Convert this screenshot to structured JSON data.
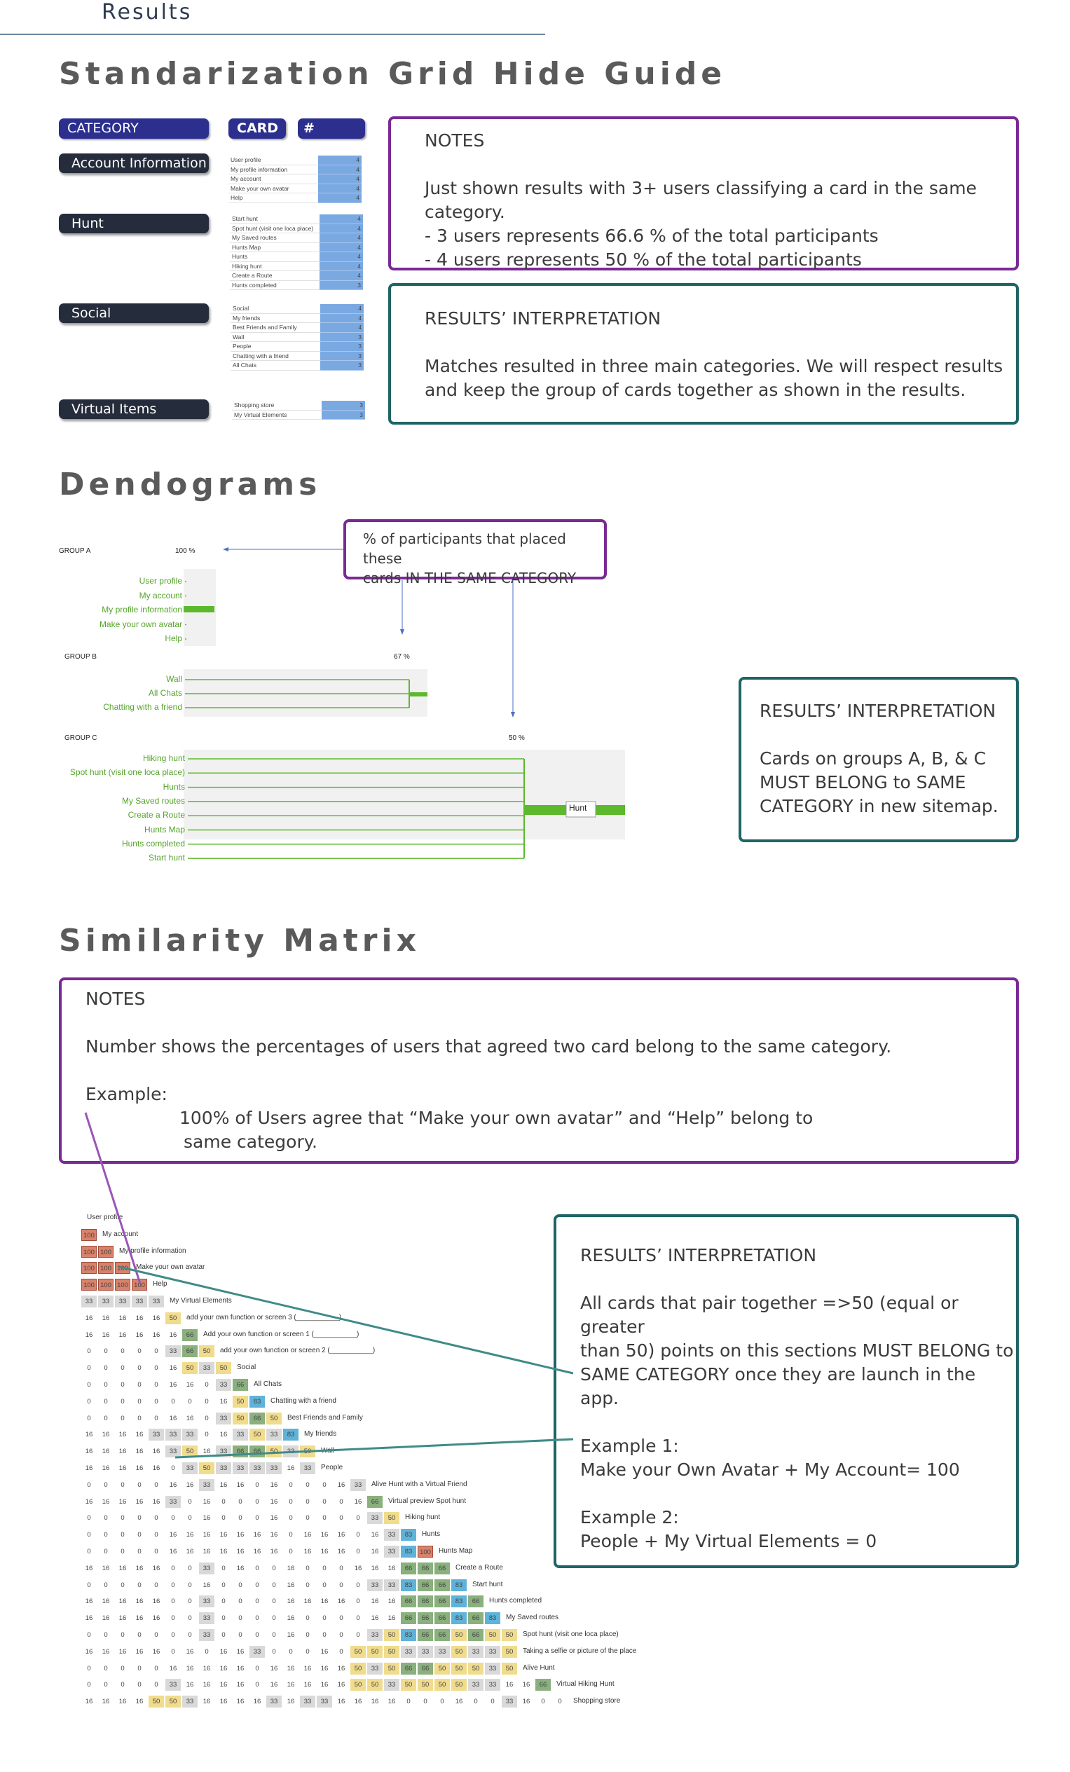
{
  "tab_title": "Results",
  "section1": {
    "title": "Standarization Grid Hide Guide",
    "headers": {
      "category": "CATEGORY",
      "card": "CARD",
      "users": "# USERS"
    },
    "categories": [
      "Account Information",
      "Hunt",
      "Social",
      "Virtual Items"
    ],
    "groups": [
      {
        "cards": [
          [
            "User profile",
            "4"
          ],
          [
            "My profile information",
            "4"
          ],
          [
            "My account",
            "4"
          ],
          [
            "Make your own avatar",
            "4"
          ],
          [
            "Help",
            "4"
          ]
        ]
      },
      {
        "cards": [
          [
            "Start hunt",
            "4"
          ],
          [
            "Spot hunt (visit one loca place)",
            "4"
          ],
          [
            "My Saved routes",
            "4"
          ],
          [
            "Hunts Map",
            "4"
          ],
          [
            "Hunts",
            "4"
          ],
          [
            "Hiking hunt",
            "4"
          ],
          [
            "Create a Route",
            "4"
          ],
          [
            "Hunts completed",
            "3"
          ]
        ]
      },
      {
        "cards": [
          [
            "Social",
            "4"
          ],
          [
            "My friends",
            "4"
          ],
          [
            "Best Friends and Family",
            "4"
          ],
          [
            "Wall",
            "3"
          ],
          [
            "People",
            "3"
          ],
          [
            "Chatting with a friend",
            "3"
          ],
          [
            "All Chats",
            "3"
          ]
        ]
      },
      {
        "cards": [
          [
            "Shopping store",
            "3"
          ],
          [
            "My Virtual Elements",
            "3"
          ]
        ]
      }
    ],
    "notes": {
      "title": "NOTES",
      "text": "Just shown results with 3+ users classifying a card in the same category.\n- 3 users represents 66.6 % of the total participants\n- 4 users represents 50 % of the total participants"
    },
    "interpretation": {
      "title": "RESULTS’ INTERPRETATION",
      "text": "Matches resulted in three main categories. We will respect results\nand keep the group of cards together as shown in the results."
    }
  },
  "section2": {
    "title": "Dendograms",
    "callout": "% of participants that placed these\ncards IN THE SAME CATEGORY",
    "groupA": {
      "label": "GROUP A",
      "pct": "100 %",
      "items": [
        "User profile",
        "My account",
        "My profile information",
        "Make your own avatar",
        "Help"
      ]
    },
    "groupB": {
      "label": "GROUP B",
      "pct": "67 %",
      "items": [
        "Wall",
        "All Chats",
        "Chatting with a friend"
      ]
    },
    "groupC": {
      "label": "GROUP C",
      "pct": "50 %",
      "items": [
        "Hiking hunt",
        "Spot hunt (visit one loca place)",
        "Hunts",
        "My Saved routes",
        "Create a Route",
        "Hunts Map",
        "Hunts completed",
        "Start hunt"
      ],
      "node": "Hunt"
    },
    "interpretation": {
      "title": "RESULTS’ INTERPRETATION",
      "text": "Cards on groups A, B, & C\nMUST BELONG to SAME\nCATEGORY in new sitemap."
    }
  },
  "section3": {
    "title": "Similarity Matrix",
    "notes": {
      "title": "NOTES",
      "line1": "Number shows the percentages of users that agreed two card belong to the same category.",
      "line2": "Example:",
      "line3": "100% of Users agree that “Make your own avatar” and “Help” belong to",
      "line4": "same category."
    },
    "interpretation": {
      "title": "RESULTS’ INTERPRETATION",
      "text": "All cards that pair together =>50 (equal or greater\nthan 50) points on this sections MUST BELONG to\nSAME CATEGORY once they are launch in the app.\n\nExample 1:\nMake your Own Avatar + My Account= 100\n\nExample 2:\nPeople + My Virtual Elements = 0"
    },
    "matrix": {
      "rows": [
        {
          "label": "User profile",
          "values": []
        },
        {
          "label": "My account",
          "values": [
            "100"
          ]
        },
        {
          "label": "My profile information",
          "values": [
            "100",
            "100"
          ]
        },
        {
          "label": "Make your own avatar",
          "values": [
            "100",
            "100",
            "100"
          ]
        },
        {
          "label": "Help",
          "values": [
            "100",
            "100",
            "100",
            "100"
          ]
        },
        {
          "label": "My Virtual Elements",
          "values": [
            "33",
            "33",
            "33",
            "33",
            "33"
          ]
        },
        {
          "label": "add your own function or screen 3 (___________)",
          "values": [
            "16",
            "16",
            "16",
            "16",
            "16",
            "50"
          ]
        },
        {
          "label": "Add your own function or screen 1 (___________)",
          "values": [
            "16",
            "16",
            "16",
            "16",
            "16",
            "16",
            "66"
          ]
        },
        {
          "label": "add your own function or screen 2 (___________)",
          "values": [
            "0",
            "0",
            "0",
            "0",
            "0",
            "33",
            "66",
            "50"
          ]
        },
        {
          "label": "Social",
          "values": [
            "0",
            "0",
            "0",
            "0",
            "0",
            "16",
            "50",
            "33",
            "50"
          ]
        },
        {
          "label": "All Chats",
          "values": [
            "0",
            "0",
            "0",
            "0",
            "0",
            "16",
            "16",
            "0",
            "33",
            "66"
          ]
        },
        {
          "label": "Chatting with a friend",
          "values": [
            "0",
            "0",
            "0",
            "0",
            "0",
            "0",
            "0",
            "0",
            "16",
            "50",
            "83"
          ]
        },
        {
          "label": "Best Friends and Family",
          "values": [
            "0",
            "0",
            "0",
            "0",
            "0",
            "16",
            "16",
            "0",
            "33",
            "50",
            "66",
            "50"
          ]
        },
        {
          "label": "My friends",
          "values": [
            "16",
            "16",
            "16",
            "16",
            "33",
            "33",
            "33",
            "0",
            "16",
            "33",
            "50",
            "33",
            "83"
          ]
        },
        {
          "label": "Wall",
          "values": [
            "16",
            "16",
            "16",
            "16",
            "16",
            "33",
            "50",
            "16",
            "33",
            "66",
            "66",
            "50",
            "33",
            "50"
          ]
        },
        {
          "label": "People",
          "values": [
            "16",
            "16",
            "16",
            "16",
            "16",
            "0",
            "33",
            "50",
            "33",
            "33",
            "33",
            "33",
            "16",
            "33"
          ]
        },
        {
          "label": "Alive Hunt with a Virtual Friend",
          "values": [
            "0",
            "0",
            "0",
            "0",
            "0",
            "16",
            "16",
            "33",
            "16",
            "16",
            "0",
            "16",
            "0",
            "0",
            "0",
            "16",
            "33"
          ]
        },
        {
          "label": "Virtual preview Spot hunt",
          "values": [
            "16",
            "16",
            "16",
            "16",
            "16",
            "33",
            "0",
            "16",
            "0",
            "0",
            "0",
            "16",
            "0",
            "0",
            "0",
            "0",
            "16",
            "66"
          ]
        },
        {
          "label": "Hiking hunt",
          "values": [
            "0",
            "0",
            "0",
            "0",
            "0",
            "0",
            "0",
            "16",
            "0",
            "0",
            "0",
            "16",
            "0",
            "0",
            "0",
            "0",
            "0",
            "33",
            "50"
          ]
        },
        {
          "label": "Hunts",
          "values": [
            "0",
            "0",
            "0",
            "0",
            "0",
            "16",
            "16",
            "16",
            "16",
            "16",
            "16",
            "16",
            "0",
            "16",
            "16",
            "16",
            "0",
            "16",
            "33",
            "83"
          ]
        },
        {
          "label": "Hunts Map",
          "values": [
            "0",
            "0",
            "0",
            "0",
            "0",
            "16",
            "16",
            "16",
            "16",
            "16",
            "16",
            "16",
            "0",
            "16",
            "16",
            "16",
            "0",
            "16",
            "33",
            "83",
            "100"
          ]
        },
        {
          "label": "Create a Route",
          "values": [
            "16",
            "16",
            "16",
            "16",
            "16",
            "0",
            "0",
            "33",
            "0",
            "16",
            "0",
            "0",
            "16",
            "0",
            "0",
            "0",
            "16",
            "16",
            "16",
            "66",
            "66",
            "66"
          ]
        },
        {
          "label": "Start hunt",
          "values": [
            "0",
            "0",
            "0",
            "0",
            "0",
            "0",
            "0",
            "16",
            "0",
            "0",
            "0",
            "0",
            "16",
            "0",
            "0",
            "0",
            "0",
            "33",
            "33",
            "83",
            "66",
            "66",
            "83"
          ]
        },
        {
          "label": "Hunts completed",
          "values": [
            "16",
            "16",
            "16",
            "16",
            "16",
            "0",
            "0",
            "33",
            "0",
            "0",
            "0",
            "0",
            "16",
            "16",
            "16",
            "16",
            "0",
            "16",
            "16",
            "66",
            "66",
            "66",
            "83",
            "66"
          ]
        },
        {
          "label": "My Saved routes",
          "values": [
            "16",
            "16",
            "16",
            "16",
            "16",
            "0",
            "0",
            "33",
            "0",
            "0",
            "0",
            "0",
            "16",
            "0",
            "0",
            "0",
            "0",
            "16",
            "16",
            "66",
            "66",
            "66",
            "83",
            "66",
            "83"
          ]
        },
        {
          "label": "Spot hunt (visit one loca place)",
          "values": [
            "0",
            "0",
            "0",
            "0",
            "0",
            "0",
            "0",
            "33",
            "0",
            "0",
            "0",
            "0",
            "16",
            "0",
            "0",
            "0",
            "0",
            "33",
            "50",
            "83",
            "66",
            "66",
            "50",
            "66",
            "50",
            "50"
          ]
        },
        {
          "label": "Taking a selfie or picture of the place",
          "values": [
            "16",
            "16",
            "16",
            "16",
            "16",
            "0",
            "16",
            "0",
            "16",
            "16",
            "33",
            "0",
            "0",
            "0",
            "16",
            "0",
            "50",
            "50",
            "50",
            "33",
            "33",
            "33",
            "50",
            "33",
            "33",
            "50"
          ]
        },
        {
          "label": "Alive Hunt",
          "values": [
            "0",
            "0",
            "0",
            "0",
            "0",
            "16",
            "16",
            "16",
            "16",
            "16",
            "0",
            "16",
            "16",
            "16",
            "16",
            "16",
            "50",
            "33",
            "50",
            "66",
            "66",
            "50",
            "50",
            "50",
            "33",
            "50"
          ]
        },
        {
          "label": "Virtual Hiking Hunt",
          "values": [
            "0",
            "0",
            "0",
            "0",
            "0",
            "33",
            "16",
            "16",
            "16",
            "16",
            "0",
            "16",
            "16",
            "16",
            "16",
            "16",
            "50",
            "50",
            "33",
            "50",
            "50",
            "50",
            "50",
            "33",
            "33",
            "16",
            "16",
            "66"
          ]
        },
        {
          "label": "Shopping store",
          "values": [
            "16",
            "16",
            "16",
            "16",
            "50",
            "50",
            "33",
            "16",
            "16",
            "16",
            "16",
            "33",
            "16",
            "33",
            "33",
            "16",
            "16",
            "16",
            "16",
            "0",
            "0",
            "0",
            "16",
            "0",
            "0",
            "33",
            "16",
            "0",
            "0"
          ]
        }
      ]
    }
  }
}
